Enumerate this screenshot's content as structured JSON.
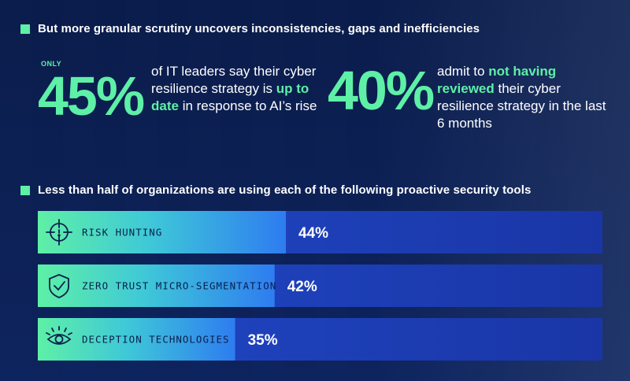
{
  "section1": {
    "heading": "But more granular scrutiny uncovers inconsistencies, gaps and inefficiencies"
  },
  "stats": [
    {
      "prefix": "ONLY",
      "value": "45%",
      "text_before": "of IT leaders say their cyber resilience strategy is ",
      "highlight": "up to date",
      "text_after": " in response to AI’s rise"
    },
    {
      "prefix": "",
      "value": "40%",
      "text_before": "admit to ",
      "highlight": "not having reviewed",
      "text_after": " their cyber resilience strategy in the last 6 months"
    }
  ],
  "section2": {
    "heading": "Less than half of organizations are using each of the following proactive security tools"
  },
  "colors": {
    "accent": "#5ef0a6",
    "background": "#0b1f4d",
    "bar_fill": "#2349d6",
    "track_fill": "#1a3aa8"
  },
  "chart_data": {
    "type": "bar",
    "orientation": "horizontal",
    "categories": [
      "RISK HUNTING",
      "ZERO TRUST MICRO-SEGMENTATION",
      "DECEPTION TECHNOLOGIES"
    ],
    "values": [
      44,
      42,
      35
    ],
    "value_labels": [
      "44%",
      "42%",
      "35%"
    ],
    "icons": [
      "crosshair-icon",
      "shield-check-icon",
      "eye-icon"
    ],
    "xlim": [
      0,
      100
    ],
    "title": "",
    "xlabel": "",
    "ylabel": "",
    "grid": false,
    "legend": "none"
  }
}
